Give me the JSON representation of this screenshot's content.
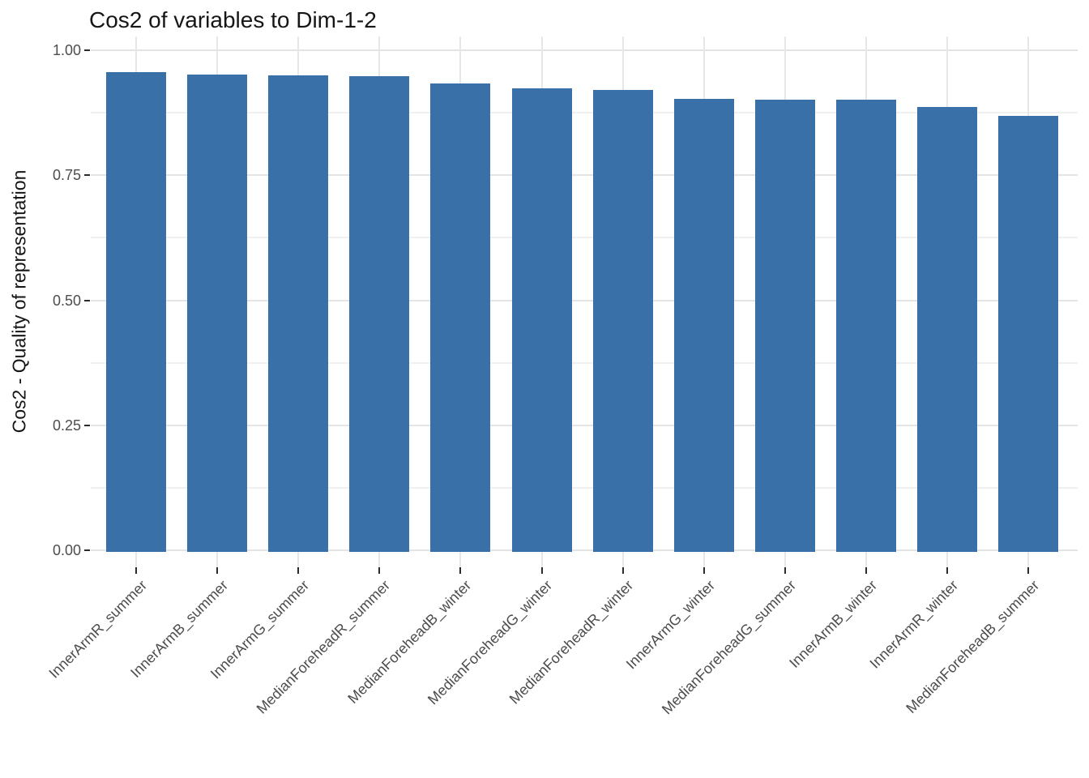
{
  "title": "Cos2 of variables to Dim-1-2",
  "chart_data": {
    "type": "bar",
    "title": "Cos2 of variables to Dim-1-2",
    "xlabel": "",
    "ylabel": "Cos2 - Quality of representation",
    "categories": [
      "InnerArmR_summer",
      "InnerArmB_summer",
      "InnerArmG_summer",
      "MedianForeheadR_summer",
      "MedianForeheadB_winter",
      "MedianForeheadG_winter",
      "MedianForeheadR_winter",
      "InnerArmG_winter",
      "MedianForeheadG_summer",
      "InnerArmB_winter",
      "InnerArmR_winter",
      "MedianForeheadB_summer"
    ],
    "values": [
      0.956,
      0.951,
      0.95,
      0.948,
      0.933,
      0.924,
      0.921,
      0.902,
      0.901,
      0.901,
      0.887,
      0.868
    ],
    "ylim": [
      0,
      1
    ],
    "yticks": [
      0.0,
      0.25,
      0.5,
      0.75,
      1.0
    ],
    "ytick_labels": [
      "0.00",
      "0.25",
      "0.50",
      "0.75",
      "1.00"
    ],
    "minor_ticks": [
      0.125,
      0.375,
      0.625,
      0.875
    ],
    "grid": true,
    "legend_position": "none",
    "bar_color": "#3A70A8",
    "grid_major_color": "#E4E4E4",
    "grid_minor_color": "#F0F0F0",
    "axis_text_color": "#4D4D4D",
    "title_color": "#161616"
  }
}
